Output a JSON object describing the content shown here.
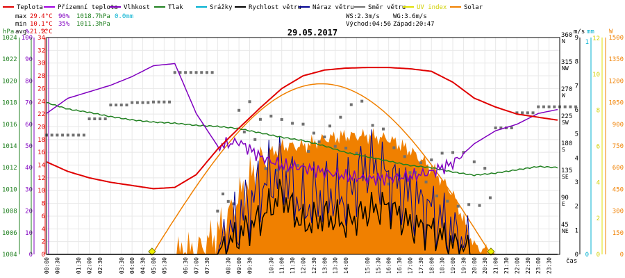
{
  "chart_data": {
    "type": "line",
    "title": "29.05.2017",
    "legend": [
      {
        "name": "Teplota",
        "color": "#e00000"
      },
      {
        "name": "Přízemní teplota",
        "color": "#a000e0"
      },
      {
        "name": "Vlhkost",
        "color": "#8000c0"
      },
      {
        "name": "Tlak",
        "color": "#208020"
      },
      {
        "name": "Srážky",
        "color": "#00b0d0"
      },
      {
        "name": "Rychlost větru",
        "color": "#000000"
      },
      {
        "name": "Náraz větru",
        "color": "#000090"
      },
      {
        "name": "Směr větru",
        "color": "#707070"
      },
      {
        "name": "UV index",
        "color": "#e0e000"
      },
      {
        "name": "Solar",
        "color": "#f08000"
      }
    ],
    "stats": {
      "max_label": "max",
      "max_temp": "29.4°C",
      "max_hum": "90%",
      "max_press": "1018.7hPa",
      "rain": "0.0mm",
      "min_label": "min",
      "min_temp": "10.1°C",
      "min_hum": "35%",
      "min_press": "1011.3hPa",
      "avg_label": "avg",
      "avg_temp": "21.2°C",
      "ws": "WS:2.3m/s",
      "wg": "WG:3.6m/s",
      "sunrise": "Východ:04:56",
      "sunset": "Západ:20:47"
    },
    "axes": {
      "hpa_label": "hPa",
      "pct_label": "%",
      "c_label": "°C",
      "ms_label": "m/s",
      "mm_label": "mm",
      "w_label": "W",
      "x_label": "čas",
      "hpa_ticks": [
        "1004",
        "1006",
        "1008",
        "1010",
        "1012",
        "1014",
        "1016",
        "1018",
        "1020",
        "1022",
        "1024"
      ],
      "pct_ticks": [
        "0",
        "10",
        "20",
        "30",
        "40",
        "50",
        "60",
        "70",
        "80",
        "90",
        "100"
      ],
      "c_ticks": [
        "0",
        "2",
        "4",
        "6",
        "8",
        "10",
        "12",
        "14",
        "16",
        "18",
        "20",
        "22",
        "24",
        "26",
        "28",
        "30",
        "32",
        "34"
      ],
      "dir_ticks": [
        {
          "deg": "45",
          "dir": "NE"
        },
        {
          "deg": "90",
          "dir": "E"
        },
        {
          "deg": "135",
          "dir": "SE"
        },
        {
          "deg": "180",
          "dir": "S"
        },
        {
          "deg": "225",
          "dir": "SW"
        },
        {
          "deg": "270",
          "dir": "W"
        },
        {
          "deg": "315",
          "dir": "NW"
        },
        {
          "deg": "360",
          "dir": "N"
        }
      ],
      "ms_ticks": [
        "0",
        "1",
        "2",
        "3",
        "4",
        "5",
        "6",
        "7",
        "8",
        "9"
      ],
      "mm_ticks": [
        "0",
        "1"
      ],
      "uv_ticks": [
        "0",
        "2",
        "4",
        "6",
        "8",
        "10",
        "12"
      ],
      "w_ticks": [
        "0",
        "150",
        "300",
        "450",
        "600",
        "750",
        "900",
        "1050",
        "1200",
        "1350",
        "1500"
      ],
      "time_ticks": [
        "00:00",
        "00:30",
        "01:30",
        "02:00",
        "02:30",
        "03:30",
        "04:00",
        "04:30",
        "05:00",
        "05:30",
        "06:30",
        "07:00",
        "07:30",
        "08:30",
        "09:00",
        "09:30",
        "10:30",
        "11:00",
        "11:30",
        "12:00",
        "12:30",
        "13:00",
        "13:30",
        "14:00",
        "15:00",
        "15:30",
        "16:00",
        "16:30",
        "17:00",
        "17:30",
        "18:00",
        "18:30",
        "19:00",
        "19:30",
        "20:00",
        "20:30",
        "21:00",
        "21:30",
        "22:00",
        "22:30",
        "23:00",
        "23:30"
      ]
    },
    "hours": [
      0,
      1,
      2,
      3,
      4,
      5,
      6,
      7,
      8,
      9,
      10,
      11,
      12,
      13,
      14,
      15,
      16,
      17,
      18,
      19,
      20,
      21,
      22,
      23,
      24
    ],
    "temperature_c": [
      14.5,
      13.0,
      12.0,
      11.3,
      10.8,
      10.3,
      10.5,
      12.5,
      16.5,
      19.8,
      23.0,
      26.0,
      28.0,
      28.9,
      29.2,
      29.3,
      29.3,
      29.1,
      28.7,
      27.0,
      24.5,
      23.1,
      22.0,
      21.5,
      21.0
    ],
    "humidity_pct": [
      65,
      72,
      75,
      78,
      82,
      87,
      88,
      65,
      50,
      52,
      45,
      41,
      40,
      38,
      36,
      35,
      35,
      36,
      38,
      42,
      51,
      57,
      60,
      65,
      67
    ],
    "pressure_hpa": [
      1018.0,
      1017.4,
      1017.1,
      1016.7,
      1016.4,
      1016.2,
      1016.1,
      1015.9,
      1015.8,
      1015.6,
      1015.2,
      1014.8,
      1014.5,
      1014.0,
      1013.4,
      1013.0,
      1012.6,
      1012.2,
      1012.0,
      1011.6,
      1011.3,
      1011.5,
      1011.8,
      1012.1,
      1012.0
    ],
    "wind_dir_deg": [
      198,
      198,
      225,
      248,
      252,
      253,
      302,
      302,
      90,
      225,
      185,
      180,
      190,
      200,
      210,
      170,
      150,
      140,
      130,
      125,
      115,
      210,
      235,
      245,
      245
    ],
    "solar_wm2": [
      0,
      0,
      0,
      0,
      0,
      0,
      0,
      20,
      150,
      400,
      650,
      750,
      750,
      800,
      820,
      820,
      800,
      720,
      600,
      420,
      60,
      0,
      0,
      0,
      0
    ],
    "solar_theoretical_max_wm2": 1180,
    "wind_speed_ms": [
      0,
      0,
      0,
      0,
      0,
      0,
      0,
      0,
      0,
      0.8,
      1.5,
      2.5,
      1.2,
      1.6,
      1.3,
      1.8,
      2.0,
      1.2,
      1.0,
      0.4,
      0,
      0,
      0,
      0,
      0
    ],
    "wind_gust_ms": [
      0,
      0,
      0,
      0,
      0,
      0,
      0,
      0,
      0,
      1.5,
      2.8,
      3.5,
      2.0,
      2.6,
      2.4,
      3.8,
      3.2,
      2.3,
      1.8,
      0.8,
      0,
      0,
      0,
      0,
      0
    ],
    "rain_mm": 0.0,
    "uv_index": 0,
    "xlim": [
      0,
      24
    ],
    "ylim_temp": [
      0,
      34
    ],
    "ylim_pct": [
      0,
      100
    ],
    "ylim_hpa": [
      1004,
      1024
    ],
    "ylim_ms": [
      0,
      9
    ],
    "ylim_w": [
      0,
      1500
    ]
  }
}
